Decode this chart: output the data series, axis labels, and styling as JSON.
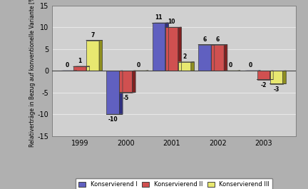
{
  "years": [
    "1999",
    "2000",
    "2001",
    "2002",
    "2003"
  ],
  "konservierend_I": [
    0,
    -10,
    11,
    6,
    0
  ],
  "konservierend_II": [
    1,
    -5,
    10,
    6,
    -2
  ],
  "konservierend_III": [
    7,
    0,
    2,
    0,
    -3
  ],
  "colors": {
    "I": "#6060c0",
    "II": "#d05050",
    "III": "#e8e870"
  },
  "colors_dark": {
    "I": "#303080",
    "II": "#802020",
    "III": "#909020"
  },
  "colors_light": {
    "I": "#9090d8",
    "II": "#e08080",
    "III": "#f0f098"
  },
  "ylim": [
    -15,
    15
  ],
  "yticks": [
    -15,
    -10,
    -5,
    0,
    5,
    10,
    15
  ],
  "ylabel": "Relativerträge in Bezug auf konventionelle Variante [%]",
  "outer_background": "#b0b0b0",
  "plot_background": "#d0d0d0",
  "grid_color": "#e8e8e8",
  "bar_width": 0.28,
  "depth": 0.07,
  "legend_labels": [
    "Konservierend I",
    "Konservierend II",
    "Konservierend III"
  ]
}
